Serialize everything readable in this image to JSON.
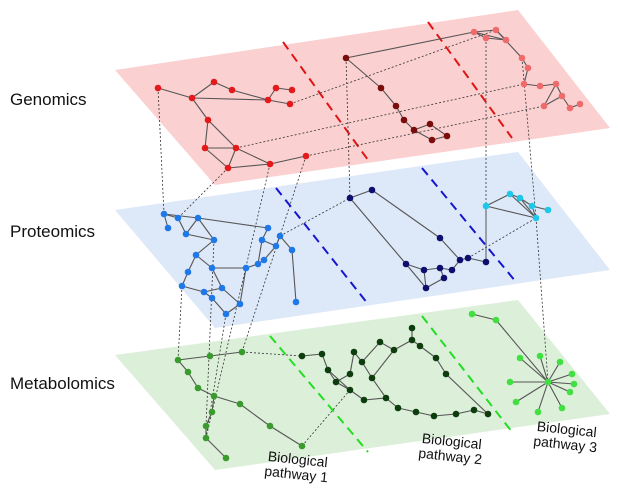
{
  "layers": [
    {
      "key": "genomics",
      "label": "Genomics",
      "plane_color": "#fbd0d0",
      "divider_color": "#e01414"
    },
    {
      "key": "proteomics",
      "label": "Proteomics",
      "plane_color": "#dde8f8",
      "divider_color": "#1616d0"
    },
    {
      "key": "metabolomics",
      "label": "Metabolomics",
      "plane_color": "#dcefd9",
      "divider_color": "#22dd22"
    }
  ],
  "pathways": [
    {
      "line1": "Biological",
      "line2": "pathway 1"
    },
    {
      "line1": "Biological",
      "line2": "pathway 2"
    },
    {
      "line1": "Biological",
      "line2": "pathway 3"
    }
  ],
  "node_colors": {
    "genomics": [
      "#e31a1c",
      "#7a0c0c",
      "#ef6b6b"
    ],
    "proteomics": [
      "#1f78e8",
      "#0e0e6e",
      "#1ec8e8"
    ],
    "metabolomics": [
      "#3a9a2e",
      "#0d3d0d",
      "#40e040"
    ]
  },
  "edge_color": "#555555",
  "interlayer_edge_color": "#333333"
}
